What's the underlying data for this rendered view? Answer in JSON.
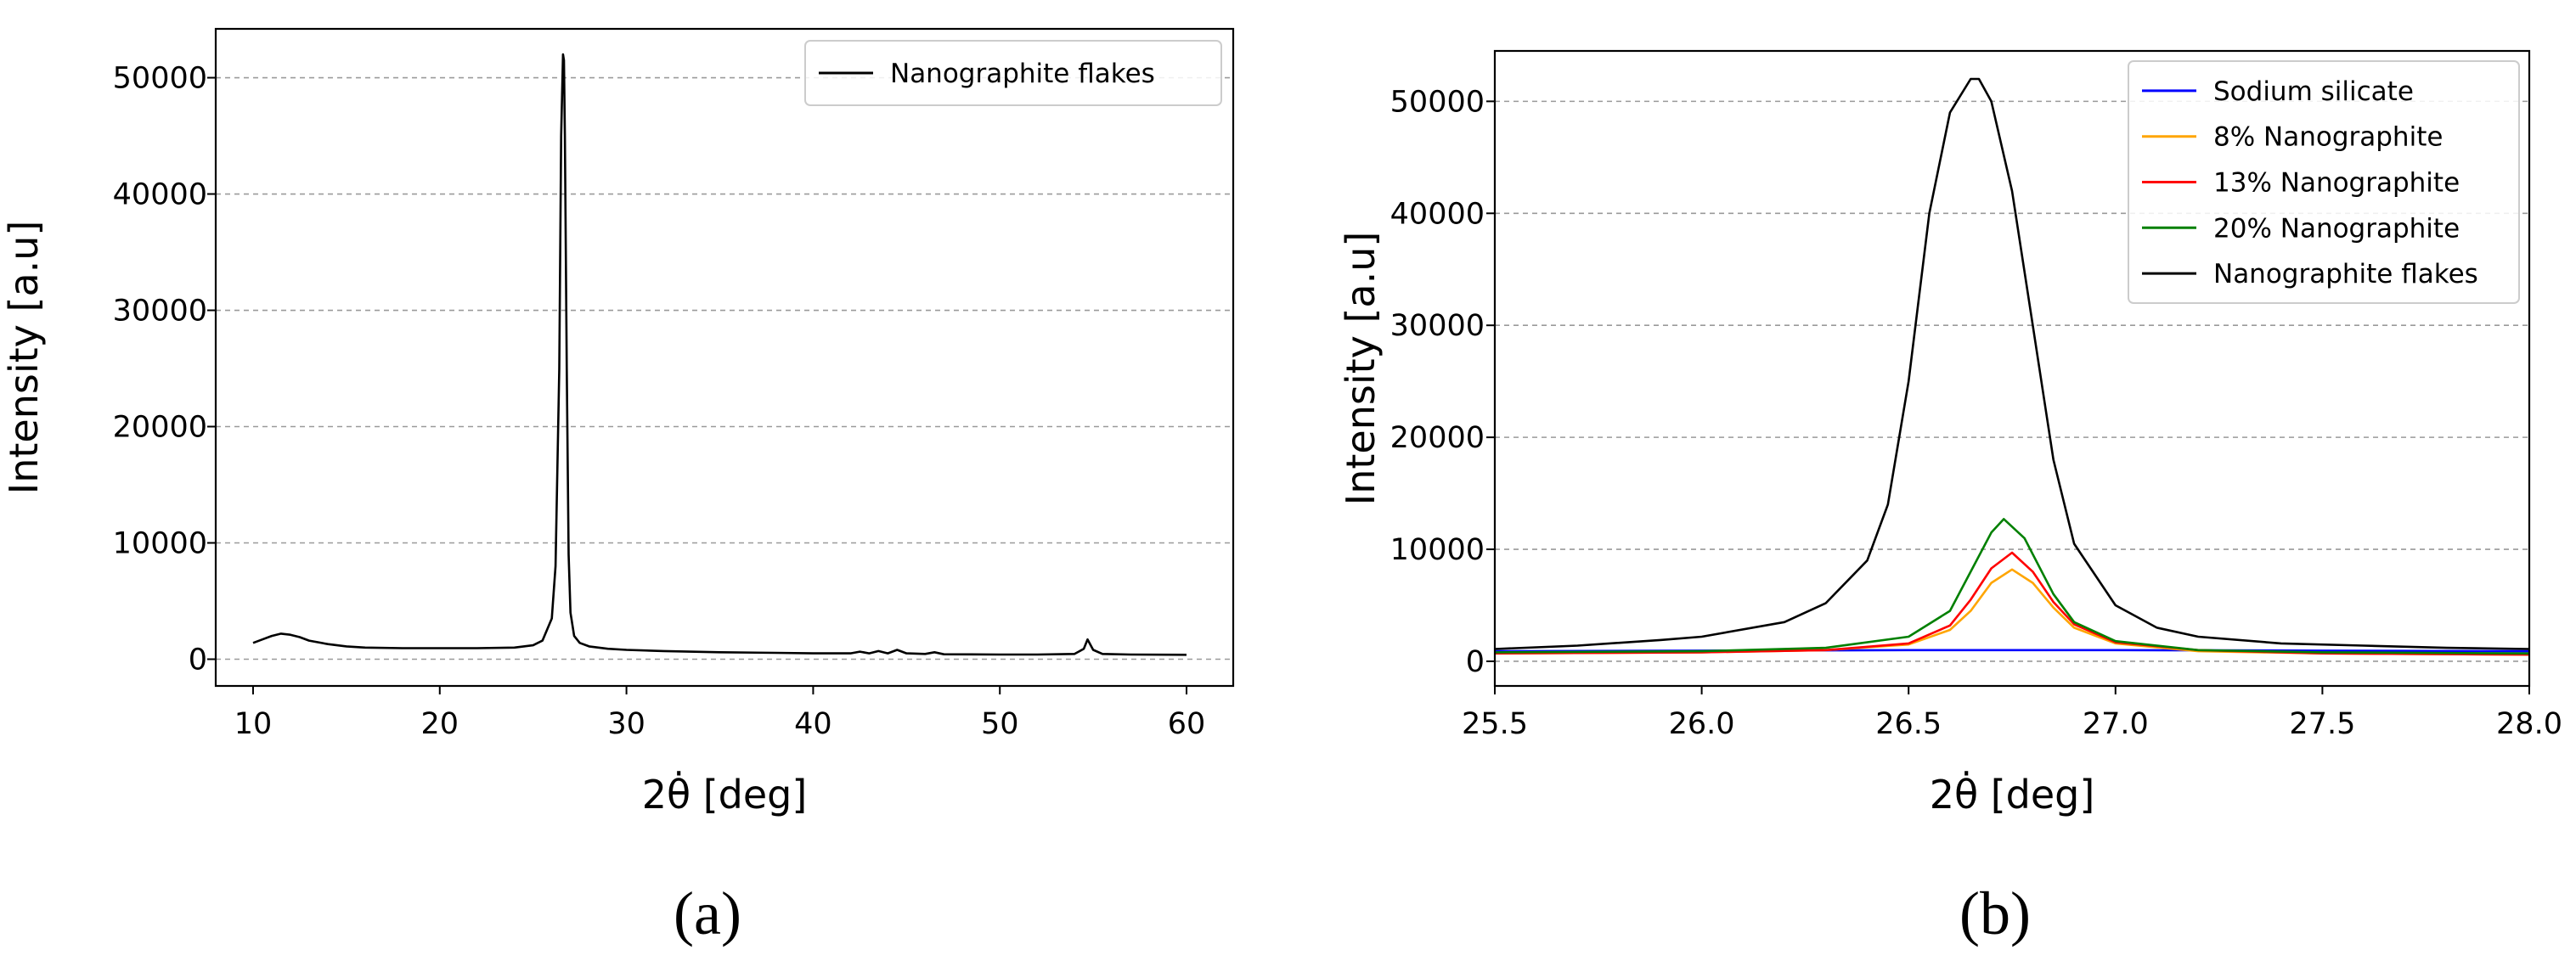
{
  "chart_data": [
    {
      "type": "line",
      "panel_label": "(a)",
      "xlabel": "2θ̇ [deg]",
      "ylabel": "Intensity [a.u]",
      "xlim": [
        8,
        62.5
      ],
      "ylim": [
        -2300,
        54200
      ],
      "xticks": [
        10,
        20,
        30,
        40,
        50,
        60
      ],
      "yticks": [
        0,
        10000,
        20000,
        30000,
        40000,
        50000
      ],
      "grid": "horizontal dashed",
      "legend_position": "top-right",
      "series": [
        {
          "name": "Nanographite flakes",
          "color": "#000000",
          "x": [
            10,
            10.5,
            11,
            11.5,
            12,
            12.5,
            13,
            14,
            15,
            16,
            18,
            20,
            22,
            24,
            25,
            25.5,
            26,
            26.2,
            26.4,
            26.5,
            26.6,
            26.65,
            26.7,
            26.8,
            26.9,
            27,
            27.2,
            27.5,
            28,
            29,
            30,
            32,
            35,
            38,
            40,
            42,
            42.5,
            43,
            43.5,
            44,
            44.5,
            45,
            46,
            46.5,
            47,
            50,
            52,
            54,
            54.5,
            54.7,
            55,
            55.5,
            57,
            60
          ],
          "y": [
            1400,
            1700,
            2000,
            2200,
            2100,
            1900,
            1600,
            1300,
            1100,
            1000,
            950,
            950,
            950,
            1000,
            1200,
            1600,
            3500,
            8000,
            25000,
            45000,
            52000,
            51500,
            45000,
            25000,
            9000,
            4000,
            2000,
            1400,
            1100,
            900,
            800,
            700,
            600,
            550,
            500,
            500,
            650,
            500,
            700,
            500,
            800,
            500,
            450,
            600,
            420,
            400,
            400,
            450,
            900,
            1700,
            800,
            450,
            400,
            380
          ]
        }
      ]
    },
    {
      "type": "line",
      "panel_label": "(b)",
      "xlabel": "2θ̇ [deg]",
      "ylabel": "Intensity [a.u]",
      "xlim": [
        25.5,
        28.0
      ],
      "ylim": [
        -2200,
        54500
      ],
      "xticks": [
        25.5,
        26.0,
        26.5,
        27.0,
        27.5,
        28.0
      ],
      "xticklabels": [
        "25.5",
        "26.0",
        "26.5",
        "27.0",
        "27.5",
        "28.0"
      ],
      "yticks": [
        0,
        10000,
        20000,
        30000,
        40000,
        50000
      ],
      "grid": "horizontal dashed",
      "legend_position": "top-right",
      "series": [
        {
          "name": "Sodium silicate",
          "color": "#0000ff",
          "x": [
            25.5,
            26.0,
            26.5,
            27.0,
            27.5,
            28.0
          ],
          "y": [
            900,
            950,
            1000,
            1000,
            950,
            900
          ]
        },
        {
          "name": "8% Nanographite",
          "color": "#ffa500",
          "x": [
            25.5,
            26.0,
            26.3,
            26.5,
            26.6,
            26.65,
            26.7,
            26.75,
            26.8,
            26.85,
            26.9,
            27.0,
            27.2,
            27.5,
            28.0
          ],
          "y": [
            700,
            800,
            1000,
            1500,
            2800,
            4500,
            7000,
            8200,
            7000,
            4800,
            3000,
            1600,
            900,
            700,
            600
          ]
        },
        {
          "name": "13% Nanographite",
          "color": "#ff0000",
          "x": [
            25.5,
            26.0,
            26.3,
            26.5,
            26.6,
            26.65,
            26.7,
            26.75,
            26.8,
            26.85,
            26.9,
            27.0,
            27.2,
            27.5,
            28.0
          ],
          "y": [
            700,
            800,
            1000,
            1600,
            3200,
            5500,
            8300,
            9700,
            8000,
            5300,
            3300,
            1700,
            1000,
            700,
            600
          ]
        },
        {
          "name": "20% Nanographite",
          "color": "#008000",
          "x": [
            25.5,
            26.0,
            26.3,
            26.5,
            26.6,
            26.65,
            26.7,
            26.73,
            26.78,
            26.85,
            26.9,
            27.0,
            27.2,
            27.5,
            28.0
          ],
          "y": [
            800,
            900,
            1200,
            2200,
            4500,
            8000,
            11500,
            12700,
            11000,
            6000,
            3500,
            1800,
            1000,
            800,
            700
          ]
        },
        {
          "name": "Nanographite flakes",
          "color": "#000000",
          "x": [
            25.5,
            25.7,
            25.9,
            26.0,
            26.2,
            26.3,
            26.4,
            26.45,
            26.5,
            26.55,
            26.6,
            26.65,
            26.67,
            26.7,
            26.75,
            26.8,
            26.85,
            26.9,
            27.0,
            27.1,
            27.2,
            27.4,
            27.6,
            27.8,
            28.0
          ],
          "y": [
            1100,
            1400,
            1900,
            2200,
            3500,
            5200,
            9000,
            14000,
            25000,
            40000,
            49000,
            52000,
            52000,
            50000,
            42000,
            30000,
            18000,
            10500,
            5000,
            3000,
            2200,
            1600,
            1400,
            1200,
            1100
          ]
        }
      ]
    }
  ]
}
